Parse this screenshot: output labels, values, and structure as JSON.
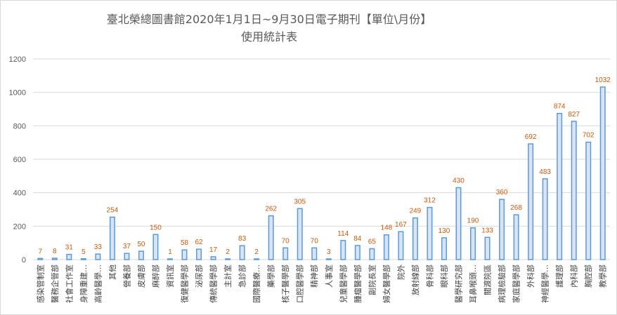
{
  "chart_data": {
    "type": "bar",
    "title_line1": "臺北榮總圖書館2020年1月1日~9月30日電子期刊【單位\\月份】",
    "title_line2": "使用統計表",
    "xlabel": "",
    "ylabel": "",
    "ylim": [
      0,
      1200
    ],
    "yticks": [
      0,
      200,
      400,
      600,
      800,
      1000,
      1200
    ],
    "grid": true,
    "legend": "none",
    "colors": {
      "bar_fill": "#dae3f3",
      "bar_stroke": "#5b9bd5",
      "value_label": "#c55a11",
      "grid": "#d9d9d9",
      "axis_text": "#595959"
    },
    "categories": [
      "感染管制室",
      "醫務企管部",
      "社會工作室",
      "身障重建…",
      "高齡醫學…",
      "其他",
      "營養部",
      "皮膚部",
      "麻醉部",
      "資訊室",
      "復健醫學部",
      "泌尿部",
      "傳統醫學部",
      "主計室",
      "急診部",
      "國際醫療…",
      "藥學部",
      "核子醫學部",
      "口腔醫學部",
      "精神部",
      "人事室",
      "兒童醫學部",
      "腫瘤醫學部",
      "副院長室",
      "婦女醫學部",
      "院外",
      "放射線部",
      "骨科部",
      "眼科部",
      "醫學研究部",
      "耳鼻喉頭…",
      "關渡院區",
      "病理檢驗部",
      "家庭醫學部",
      "外科部",
      "神經醫學…",
      "護理部",
      "內科部",
      "胸腔部",
      "教學部"
    ],
    "values": [
      7,
      8,
      31,
      5,
      33,
      254,
      37,
      50,
      150,
      1,
      58,
      62,
      17,
      2,
      83,
      2,
      262,
      70,
      305,
      70,
      3,
      114,
      84,
      65,
      148,
      167,
      249,
      312,
      130,
      430,
      190,
      133,
      360,
      268,
      692,
      483,
      874,
      827,
      702,
      1032
    ]
  }
}
